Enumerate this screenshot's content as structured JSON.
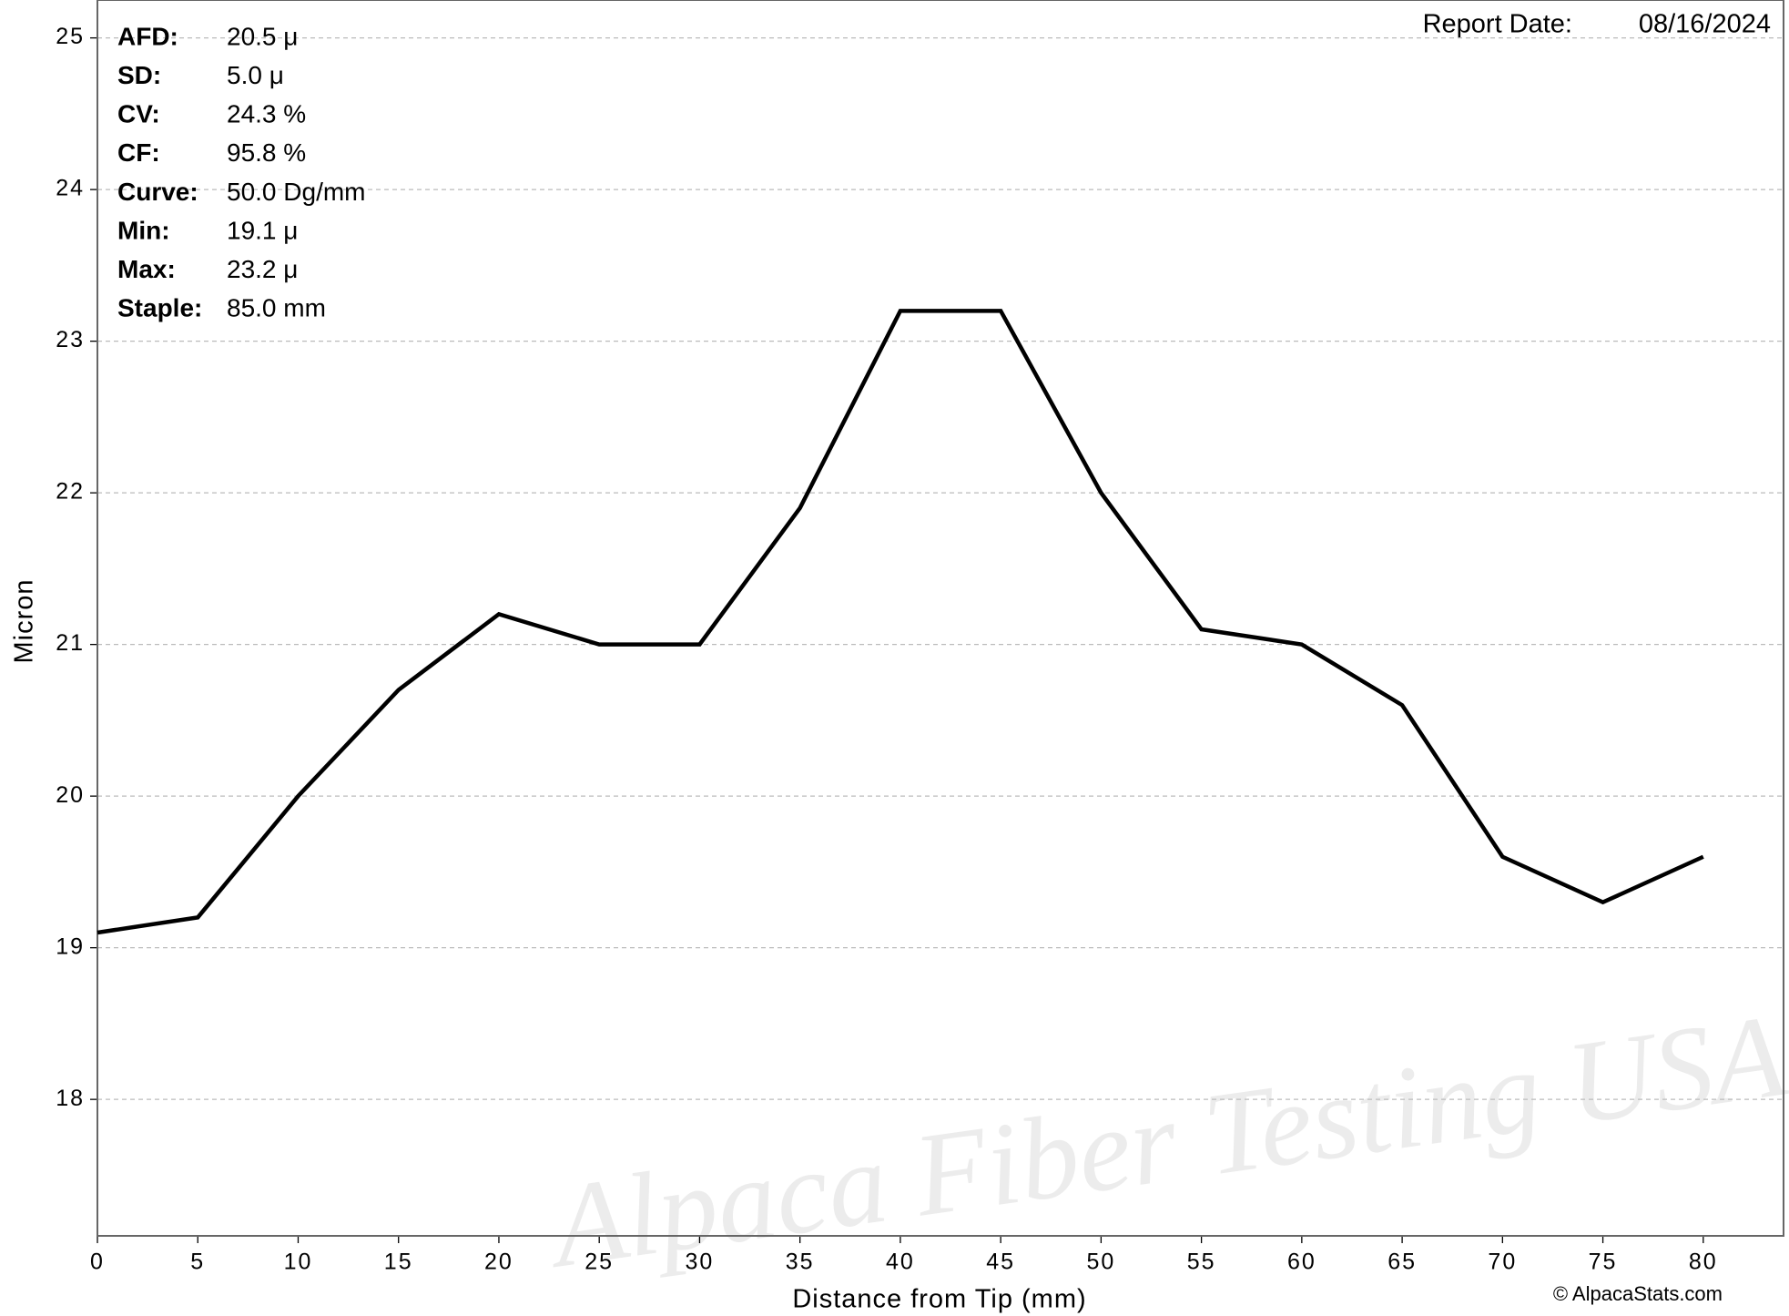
{
  "chart_data": {
    "type": "line",
    "xlabel": "Distance from Tip (mm)",
    "ylabel": "Micron",
    "x": [
      0,
      5,
      10,
      15,
      20,
      25,
      30,
      35,
      40,
      45,
      50,
      55,
      60,
      65,
      70,
      75,
      80
    ],
    "series": [
      {
        "color": "#000000",
        "values": [
          19.1,
          19.2,
          20.0,
          20.7,
          21.2,
          21.0,
          21.0,
          21.9,
          23.2,
          23.2,
          22.0,
          21.1,
          21.0,
          20.6,
          19.6,
          19.3,
          19.6
        ]
      }
    ],
    "xlim": [
      0,
      84
    ],
    "ylim": [
      17.1,
      25.25
    ],
    "xticks": [
      0,
      5,
      10,
      15,
      20,
      25,
      30,
      35,
      40,
      45,
      50,
      55,
      60,
      65,
      70,
      75,
      80
    ],
    "yticks": [
      18,
      19,
      20,
      21,
      22,
      23,
      24,
      25
    ],
    "grid": true,
    "stats": [
      {
        "label": "AFD:",
        "value": "20.5 μ"
      },
      {
        "label": "SD:",
        "value": "5.0 μ"
      },
      {
        "label": "CV:",
        "value": "24.3 %"
      },
      {
        "label": "CF:",
        "value": "95.8 %"
      },
      {
        "label": "Curve:",
        "value": "50.0 Dg/mm"
      },
      {
        "label": "Min:",
        "value": "19.1 μ"
      },
      {
        "label": "Max:",
        "value": "23.2 μ"
      },
      {
        "label": "Staple:",
        "value": "85.0 mm"
      }
    ],
    "report_date_label": "Report Date:",
    "report_date": "08/16/2024",
    "watermark": "Alpaca Fiber Testing USA",
    "copyright": "© AlpacaStats.com"
  }
}
